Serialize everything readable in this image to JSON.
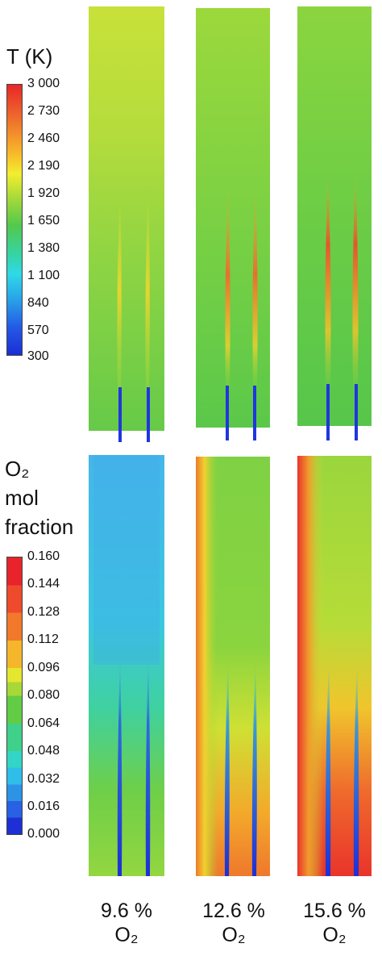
{
  "temperature_legend": {
    "title": "T (K)",
    "ticks": [
      "3 000",
      "2 730",
      "2 460",
      "2 190",
      "1 920",
      "1 650",
      "1 380",
      "1 100",
      "840",
      "570",
      "300"
    ]
  },
  "o2_legend": {
    "title_lines": [
      "O₂",
      "mol",
      "fraction"
    ],
    "ticks": [
      "0.160",
      "0.144",
      "0.128",
      "0.112",
      "0.096",
      "0.080",
      "0.064",
      "0.048",
      "0.032",
      "0.016",
      "0.000"
    ]
  },
  "cases": [
    {
      "percent": "9.6 %",
      "species": "O₂"
    },
    {
      "percent": "12.6 %",
      "species": "O₂"
    },
    {
      "percent": "15.6 %",
      "species": "O₂"
    }
  ]
}
